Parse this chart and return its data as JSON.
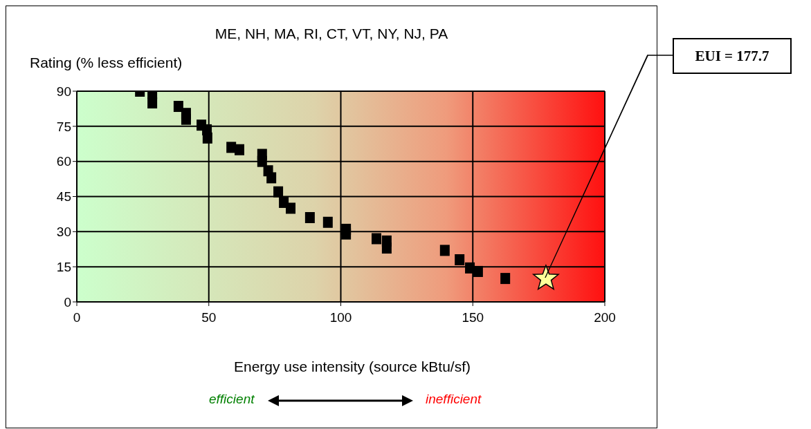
{
  "chart_data": {
    "type": "scatter",
    "title": "ME, NH, MA, RI, CT, VT, NY, NJ, PA",
    "ylabel": "Rating (% less efficient)",
    "xlabel": "Energy use intensity (source kBtu/sf)",
    "series": [
      {
        "color": "#000000",
        "marker": "square",
        "x": [
          23.9,
          28.6,
          28.6,
          38.5,
          41.4,
          41.4,
          47.2,
          49.3,
          49.5,
          58.5,
          61.6,
          70.2,
          70.2,
          72.5,
          73.7,
          76.3,
          78.4,
          81,
          88.3,
          95.1,
          102,
          102,
          113.5,
          117.4,
          117.4,
          139.4,
          145,
          148.9,
          152,
          162.3
        ],
        "values": [
          90,
          89,
          85,
          83.5,
          80.5,
          78,
          75.5,
          73.5,
          70,
          66,
          65,
          63,
          60,
          56,
          53,
          47,
          42.5,
          40,
          36,
          34,
          31,
          29,
          27,
          26,
          23,
          22,
          18,
          14.5,
          13,
          10
        ]
      },
      {
        "color": "#ffff99",
        "marker": "star",
        "x": [
          177.7
        ],
        "values": [
          10
        ]
      }
    ],
    "xlim": [
      0,
      200
    ],
    "xticks": [
      0,
      50,
      100,
      150,
      200
    ],
    "ylim": [
      0,
      90
    ],
    "yticks": [
      0,
      15,
      30,
      45,
      60,
      75,
      90
    ],
    "grid": true,
    "annotations": [
      "EUI = 177.7",
      "efficient",
      "inefficient"
    ]
  }
}
